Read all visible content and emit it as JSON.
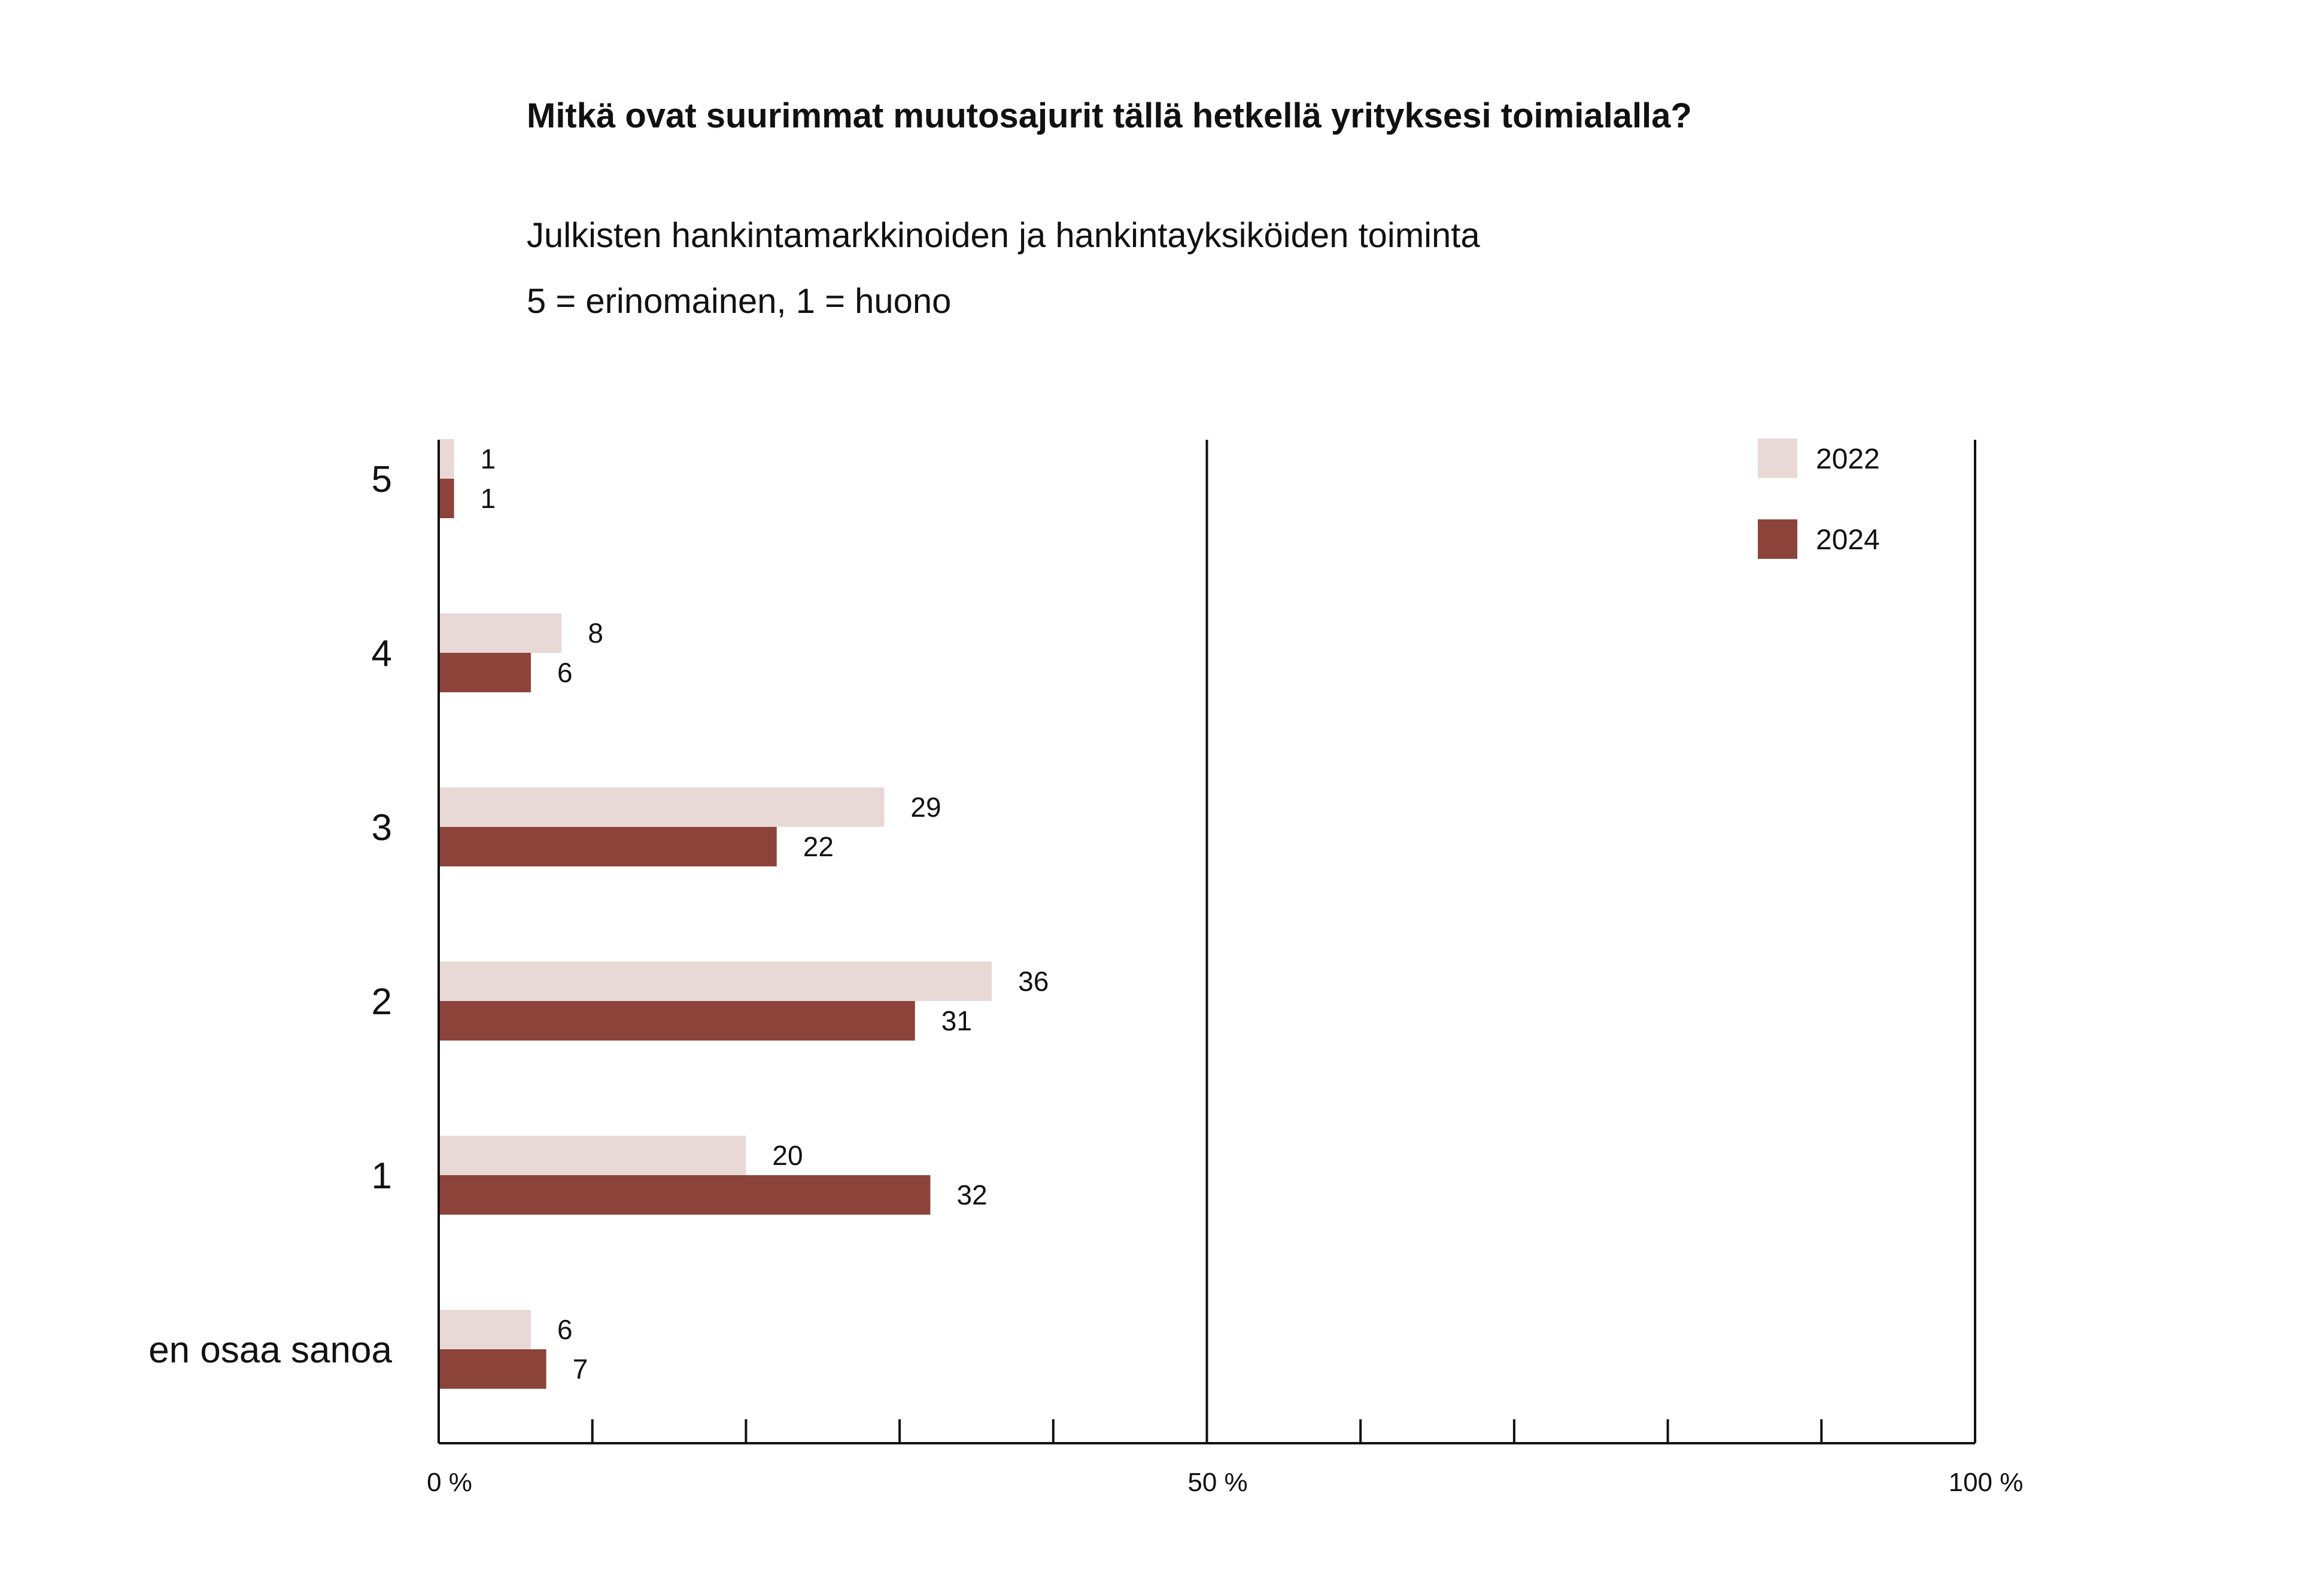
{
  "title": "Mitkä ovat suurimmat muutosajurit tällä hetkellä yrityksesi toimialalla?",
  "subtitle": "Julkisten hankintamarkkinoiden ja hankintayksiköiden toiminta",
  "scale_note": "5 = erinomainen, 1 = huono",
  "colors": {
    "2022": "#e8d9d7",
    "2024": "#8c433a"
  },
  "chart_data": {
    "type": "bar",
    "orientation": "horizontal",
    "categories": [
      "5",
      "4",
      "3",
      "2",
      "1",
      "en osaa sanoa"
    ],
    "series": [
      {
        "name": "2022",
        "values": [
          1,
          8,
          29,
          36,
          20,
          6
        ]
      },
      {
        "name": "2024",
        "values": [
          1,
          6,
          22,
          31,
          32,
          7
        ]
      }
    ],
    "xlim": [
      0,
      100
    ],
    "x_tick_labels": [
      "0 %",
      "50 %",
      "100 %"
    ],
    "legend_position": "top-right",
    "grid": false
  }
}
